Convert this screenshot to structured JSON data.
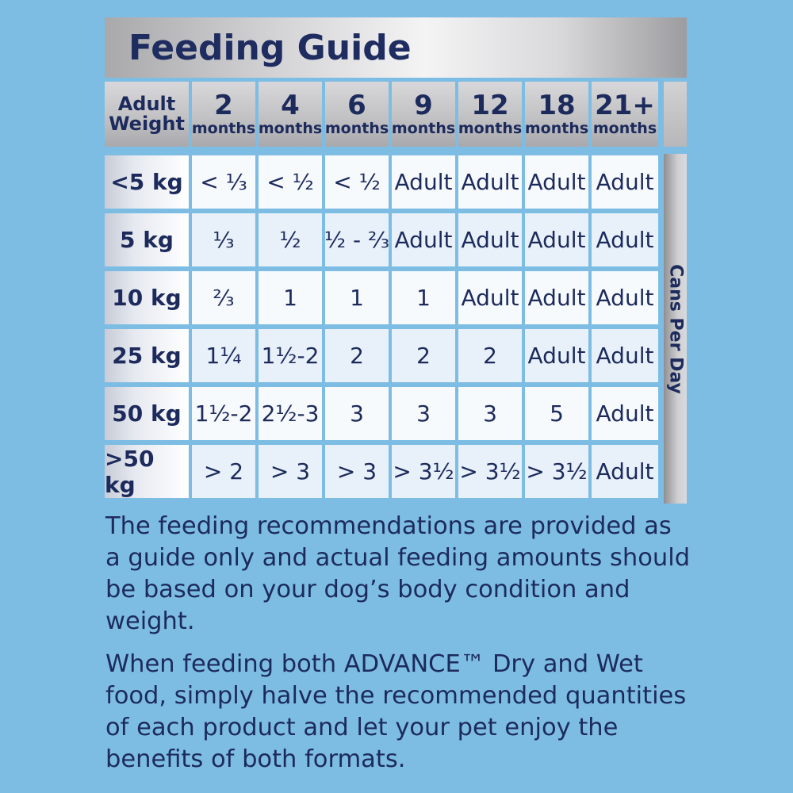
{
  "title": "Feeding Guide",
  "colors": {
    "background": "#7dbde4",
    "text": "#1c2a5c",
    "header_silver": "#c2c2c5"
  },
  "table": {
    "weight_header": [
      "Adult",
      "Weight"
    ],
    "side_label": "Cans Per Day",
    "columns": [
      {
        "num": "2",
        "unit": "months"
      },
      {
        "num": "4",
        "unit": "months"
      },
      {
        "num": "6",
        "unit": "months"
      },
      {
        "num": "9",
        "unit": "months"
      },
      {
        "num": "12",
        "unit": "months"
      },
      {
        "num": "18",
        "unit": "months"
      },
      {
        "num": "21+",
        "unit": "months"
      }
    ],
    "rows": [
      {
        "weight": "<5 kg",
        "values": [
          "< ⅓",
          "< ½",
          "< ½",
          "Adult",
          "Adult",
          "Adult",
          "Adult"
        ]
      },
      {
        "weight": "5 kg",
        "values": [
          "⅓",
          "½",
          "½ - ⅔",
          "Adult",
          "Adult",
          "Adult",
          "Adult"
        ]
      },
      {
        "weight": "10 kg",
        "values": [
          "⅔",
          "1",
          "1",
          "1",
          "Adult",
          "Adult",
          "Adult"
        ]
      },
      {
        "weight": "25 kg",
        "values": [
          "1¼",
          "1½-2",
          "2",
          "2",
          "2",
          "Adult",
          "Adult"
        ]
      },
      {
        "weight": "50 kg",
        "values": [
          "1½-2",
          "2½-3",
          "3",
          "3",
          "3",
          "5",
          "Adult"
        ]
      },
      {
        "weight": ">50 kg",
        "values": [
          "> 2",
          "> 3",
          "> 3",
          "> 3½",
          "> 3½",
          "> 3½",
          "Adult"
        ]
      }
    ]
  },
  "notes": [
    "The feeding recommendations are provided as a guide only and actual feeding amounts should be based on your dog’s body condition and weight.",
    "When feeding both ADVANCE™ Dry and Wet food, simply halve the recommended quantities of each product and let your pet enjoy the benefits of both formats."
  ]
}
